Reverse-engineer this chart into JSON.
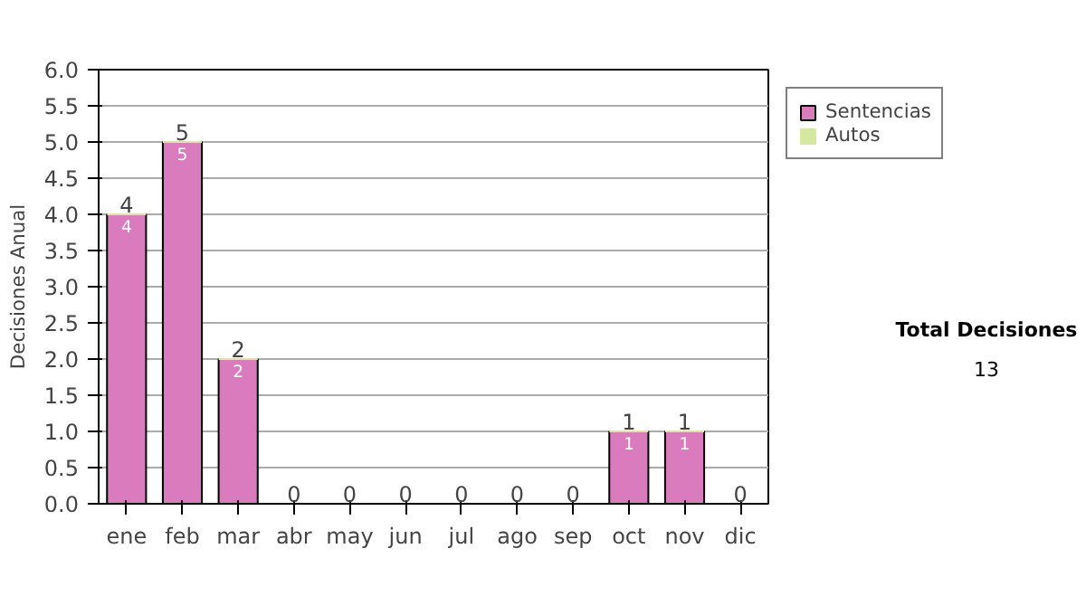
{
  "chart_data": {
    "type": "bar",
    "stacked": true,
    "ylabel": "Decisiones Anual",
    "categories": [
      "ene",
      "feb",
      "mar",
      "abr",
      "may",
      "jun",
      "jul",
      "ago",
      "sep",
      "oct",
      "nov",
      "dic"
    ],
    "series": [
      {
        "name": "Sentencias",
        "color": "#d97bbd",
        "values": [
          4,
          5,
          2,
          0,
          0,
          0,
          0,
          0,
          0,
          1,
          1,
          0
        ],
        "value_labels": [
          "4",
          "5",
          "2",
          null,
          null,
          null,
          null,
          null,
          null,
          "1",
          "1",
          null
        ]
      },
      {
        "name": "Autos",
        "color": "#d4e8a0",
        "values": [
          0,
          0,
          0,
          0,
          0,
          0,
          0,
          0,
          0,
          0,
          0,
          0
        ]
      }
    ],
    "totals": [
      "4",
      "5",
      "2",
      "0",
      "0",
      "0",
      "0",
      "0",
      "0",
      "1",
      "1",
      "0"
    ],
    "ylim": [
      0,
      6
    ],
    "yticks": [
      "0.0",
      "0.5",
      "1.0",
      "1.5",
      "2.0",
      "2.5",
      "3.0",
      "3.5",
      "4.0",
      "4.5",
      "5.0",
      "5.5",
      "6.0"
    ],
    "grid": "y",
    "legend": "right",
    "annotations": [
      "Total Decisiones",
      "13"
    ]
  }
}
